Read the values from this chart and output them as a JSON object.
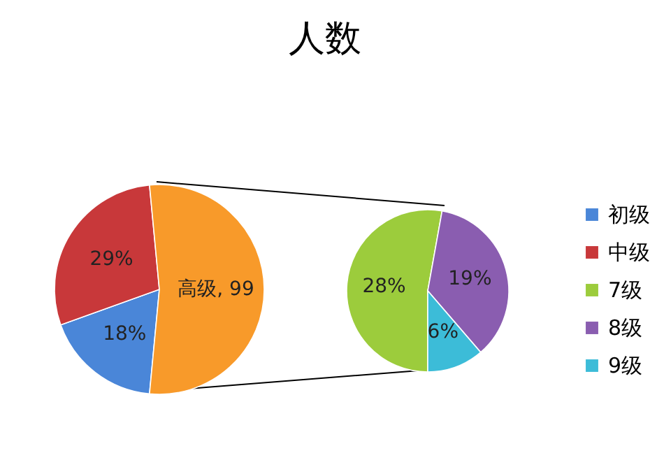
{
  "chart_data": [
    {
      "type": "pie",
      "title": "人数",
      "categories": [
        "初级",
        "中级",
        null
      ],
      "values": [
        18,
        29,
        53
      ],
      "colors": [
        "#4a86d8",
        "#c8383a",
        "#f89a2a"
      ],
      "value_labels": [
        "18%",
        "29%",
        null
      ],
      "annotations": [
        "高级, 99"
      ],
      "legend": "right"
    },
    {
      "type": "pie",
      "categories": [
        "7级",
        "8级",
        "9级"
      ],
      "values": [
        28,
        19,
        6
      ],
      "colors": [
        "#9ccc3c",
        "#8a5db0",
        "#3cbcd8"
      ],
      "value_labels": [
        "28%",
        "19%",
        "6%"
      ],
      "legend": "right"
    }
  ]
}
